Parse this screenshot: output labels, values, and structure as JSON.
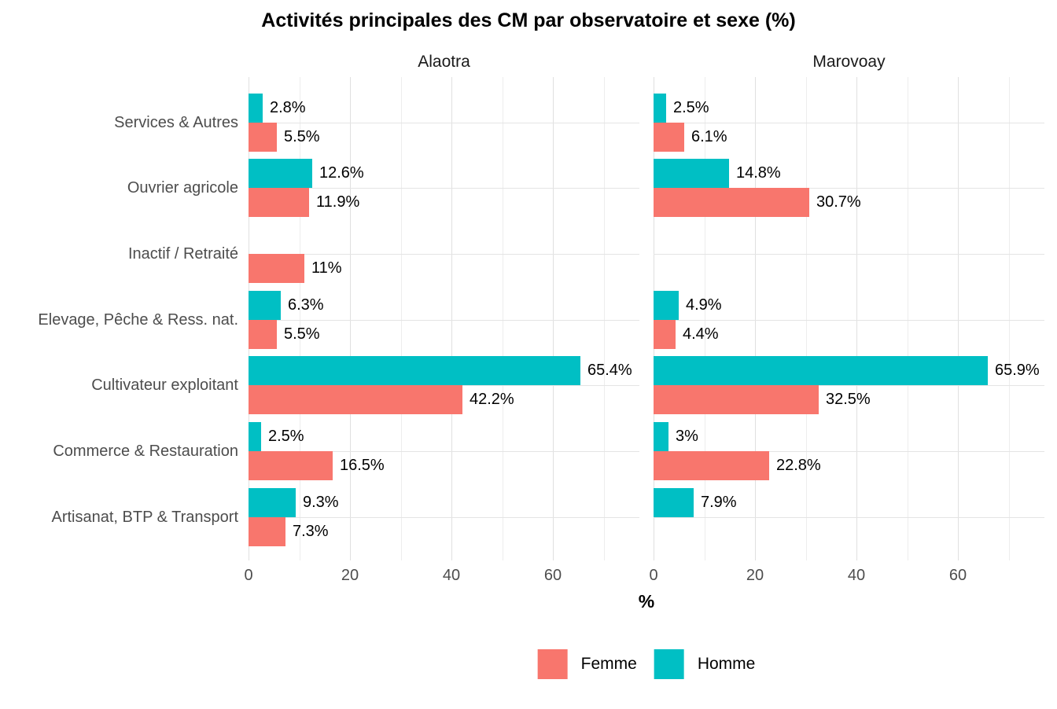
{
  "title": "Activités principales des CM par observatoire et sexe (%)",
  "legend": {
    "items": [
      {
        "label": "Femme",
        "color": "#F8766D"
      },
      {
        "label": "Homme",
        "color": "#00BFC4"
      }
    ]
  },
  "colors": {
    "femme": "#F8766D",
    "homme": "#00BFC4",
    "axis_text": "#4d4d4d",
    "grid_major": "#e0e0e0",
    "grid_minor": "#ededed"
  },
  "chart_data": {
    "type": "bar",
    "orientation": "horizontal",
    "title": "Activités principales des CM par observatoire et sexe (%)",
    "xlabel": "%",
    "ylabel": "",
    "xlim": [
      0,
      77
    ],
    "x_ticks": [
      0,
      20,
      40,
      60
    ],
    "x_gridlines_minor": [
      10,
      30,
      50,
      70
    ],
    "grid": "on",
    "legend_position": "bottom",
    "categories": [
      "Services & Autres",
      "Ouvrier agricole",
      "Inactif / Retraité",
      "Elevage, Pêche & Ress. nat.",
      "Cultivateur exploitant",
      "Commerce & Restauration",
      "Artisanat, BTP & Transport"
    ],
    "facets": [
      {
        "name": "Alaotra",
        "series": [
          {
            "name": "Homme",
            "color": "#00BFC4",
            "values": [
              2.8,
              12.6,
              null,
              6.3,
              65.4,
              2.5,
              9.3
            ],
            "labels": [
              "2.8%",
              "12.6%",
              null,
              "6.3%",
              "65.4%",
              "2.5%",
              "9.3%"
            ]
          },
          {
            "name": "Femme",
            "color": "#F8766D",
            "values": [
              5.5,
              11.9,
              11,
              5.5,
              42.2,
              16.5,
              7.3
            ],
            "labels": [
              "5.5%",
              "11.9%",
              "11%",
              "5.5%",
              "42.2%",
              "16.5%",
              "7.3%"
            ]
          }
        ]
      },
      {
        "name": "Marovoay",
        "series": [
          {
            "name": "Homme",
            "color": "#00BFC4",
            "values": [
              2.5,
              14.8,
              null,
              4.9,
              65.9,
              3,
              7.9
            ],
            "labels": [
              "2.5%",
              "14.8%",
              null,
              "4.9%",
              "65.9%",
              "3%",
              "7.9%"
            ]
          },
          {
            "name": "Femme",
            "color": "#F8766D",
            "values": [
              6.1,
              30.7,
              null,
              4.4,
              32.5,
              22.8,
              null
            ],
            "labels": [
              "6.1%",
              "30.7%",
              null,
              "4.4%",
              "32.5%",
              "22.8%",
              null
            ]
          }
        ]
      }
    ]
  }
}
